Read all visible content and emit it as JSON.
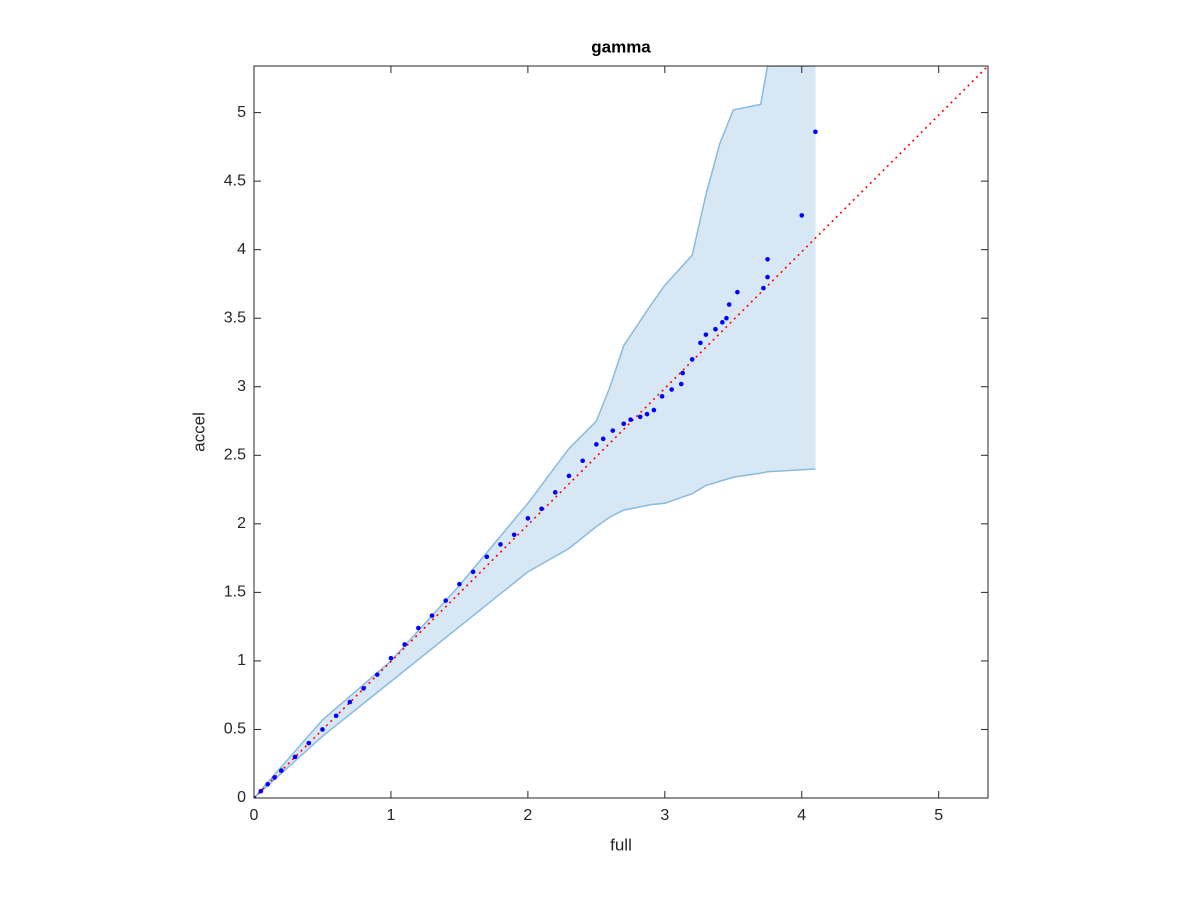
{
  "chart_data": {
    "type": "scatter",
    "title": "gamma",
    "x_label": "full",
    "y_label": "accel",
    "xlim": [
      0,
      5.36
    ],
    "ylim": [
      0,
      5.34
    ],
    "xticks": [
      0,
      1,
      2,
      3,
      4,
      5
    ],
    "yticks": [
      0,
      0.5,
      1,
      1.5,
      2,
      2.5,
      3,
      3.5,
      4,
      4.5,
      5
    ],
    "series": [
      {
        "type": "band",
        "color": "#d7e7f4",
        "edge_color": "#89bbe0",
        "x": [
          0,
          0.5,
          1,
          1.5,
          2,
          2.3,
          2.5,
          2.6,
          2.7,
          2.9,
          3.0,
          3.2,
          3.3,
          3.4,
          3.5,
          3.7,
          3.75,
          4.1
        ],
        "upper": [
          0,
          0.57,
          1.0,
          1.55,
          2.15,
          2.55,
          2.75,
          3.0,
          3.3,
          3.6,
          3.74,
          3.96,
          4.4,
          4.77,
          5.02,
          5.06,
          5.34,
          5.34
        ],
        "lower": [
          0,
          0.45,
          0.85,
          1.25,
          1.65,
          1.82,
          1.98,
          2.05,
          2.1,
          2.14,
          2.15,
          2.22,
          2.28,
          2.31,
          2.34,
          2.37,
          2.38,
          2.4
        ]
      },
      {
        "type": "line",
        "color": "#ff0000",
        "dotted": true,
        "x": [
          0,
          5.36
        ],
        "values": [
          0,
          5.34
        ]
      },
      {
        "type": "scatter",
        "color": "#0000ff",
        "x": [
          0,
          0.05,
          0.1,
          0.15,
          0.2,
          0.3,
          0.4,
          0.5,
          0.6,
          0.7,
          0.8,
          0.9,
          1.0,
          1.1,
          1.2,
          1.3,
          1.4,
          1.5,
          1.6,
          1.7,
          1.8,
          1.9,
          2.0,
          2.1,
          2.2,
          2.3,
          2.4,
          2.5,
          2.55,
          2.62,
          2.7,
          2.75,
          2.82,
          2.87,
          2.92,
          2.98,
          3.05,
          3.12,
          3.13,
          3.2,
          3.26,
          3.3,
          3.37,
          3.42,
          3.45,
          3.47,
          3.53,
          3.72,
          3.75,
          3.75,
          4.0,
          4.1
        ],
        "values": [
          0,
          0.05,
          0.1,
          0.15,
          0.2,
          0.3,
          0.4,
          0.5,
          0.6,
          0.7,
          0.8,
          0.9,
          1.02,
          1.12,
          1.24,
          1.33,
          1.44,
          1.56,
          1.65,
          1.76,
          1.85,
          1.92,
          2.04,
          2.11,
          2.23,
          2.35,
          2.46,
          2.58,
          2.62,
          2.68,
          2.73,
          2.76,
          2.78,
          2.8,
          2.83,
          2.93,
          2.98,
          3.02,
          3.1,
          3.2,
          3.32,
          3.38,
          3.42,
          3.47,
          3.5,
          3.6,
          3.69,
          3.72,
          3.8,
          3.93,
          4.25,
          4.86
        ]
      }
    ]
  }
}
